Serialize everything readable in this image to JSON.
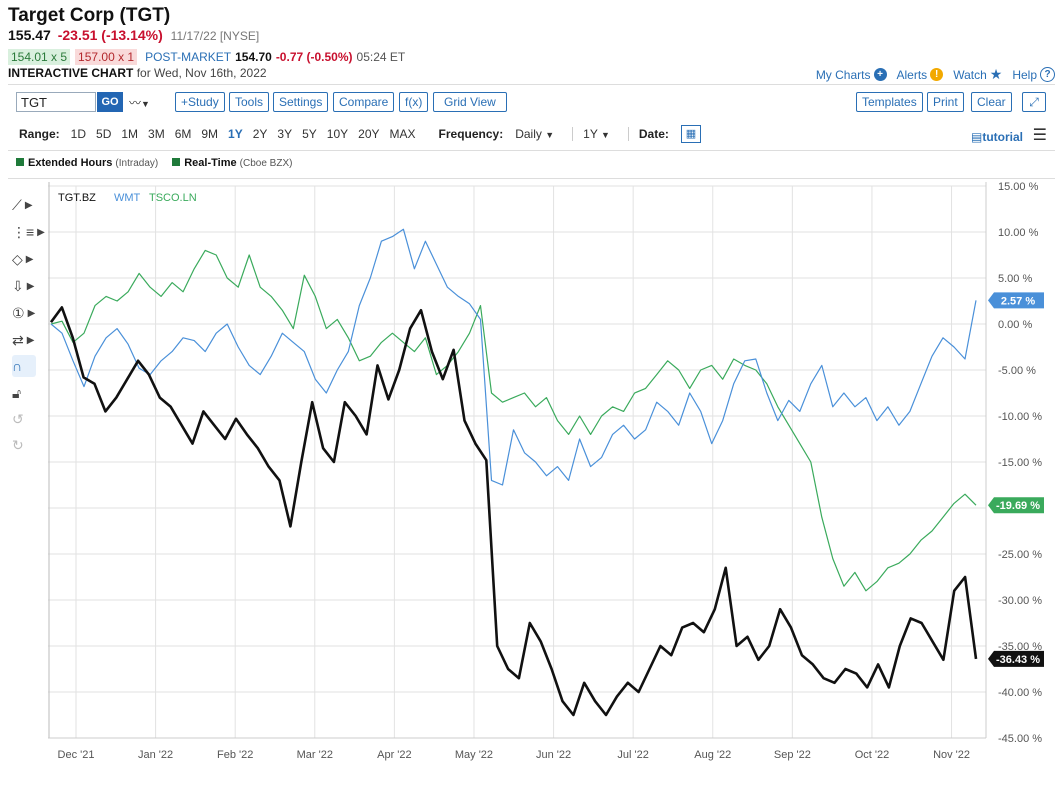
{
  "header": {
    "title": "Target Corp (TGT)",
    "last": "155.47",
    "change": "-23.51 (-13.14%)",
    "time": "11/17/22 [NYSE]",
    "bid": "154.01 x 5",
    "ask": "157.00 x 1",
    "post_label": "POST-MARKET",
    "post_price": "154.70",
    "post_change": "-0.77 (-0.50%)",
    "post_time": "05:24 ET",
    "chart_label": "INTERACTIVE CHART",
    "chart_date": "for Wed, Nov 16th, 2022"
  },
  "links": {
    "my_charts": "My Charts",
    "alerts": "Alerts",
    "watch": "Watch",
    "help": "Help"
  },
  "toolbar": {
    "symbol": "TGT",
    "go": "GO",
    "study": "+Study",
    "tools": "Tools",
    "settings": "Settings",
    "compare": "Compare",
    "fx": "f(x)",
    "grid_view": "Grid View",
    "templates": "Templates",
    "print": "Print",
    "clear": "Clear"
  },
  "range": {
    "label": "Range:",
    "options": [
      "1D",
      "5D",
      "1M",
      "3M",
      "6M",
      "9M",
      "1Y",
      "2Y",
      "3Y",
      "5Y",
      "10Y",
      "20Y",
      "MAX"
    ],
    "active": "1Y",
    "frequency_label": "Frequency:",
    "frequency": "Daily",
    "period": "1Y",
    "date_label": "Date:",
    "tutorial": "tutorial"
  },
  "legend": {
    "extended": "Extended Hours",
    "extended_sub": "(Intraday)",
    "realtime": "Real-Time",
    "realtime_sub": "(Cboe BZX)"
  },
  "colors": {
    "tgt": "#111111",
    "wmt": "#4a90d9",
    "tsco": "#3aaa5c",
    "accent": "#2a6fb5"
  },
  "chart_data": {
    "type": "line",
    "x_labels": [
      "Dec '21",
      "Jan '22",
      "Feb '22",
      "Mar '22",
      "Apr '22",
      "May '22",
      "Jun '22",
      "Jul '22",
      "Aug '22",
      "Sep '22",
      "Oct '22",
      "Nov '22"
    ],
    "y_ticks": [
      "15.00 %",
      "10.00 %",
      "5.00 %",
      "0.00 %",
      "-5.00 %",
      "-10.00 %",
      "-15.00 %",
      "-20.00 %",
      "-25.00 %",
      "-30.00 %",
      "-35.00 %",
      "-40.00 %",
      "-45.00 %"
    ],
    "ylim": [
      -45,
      15
    ],
    "series": [
      {
        "name": "TGT.BZ",
        "badge": "-36.43 %",
        "values": [
          0.2,
          1.8,
          -1.5,
          -5.8,
          -6.5,
          -9.5,
          -8,
          -6,
          -4,
          -5.5,
          -8,
          -9,
          -11,
          -13,
          -9.5,
          -11,
          -12.5,
          -10.3,
          -12,
          -13.5,
          -15.5,
          -17,
          -22,
          -15,
          -8.5,
          -13.5,
          -15,
          -8.5,
          -10,
          -12,
          -4.5,
          -8.2,
          -5,
          -0.5,
          1.5,
          -3,
          -6,
          -2.8,
          -10.5,
          -13,
          -14.8,
          -35,
          -37.5,
          -38.5,
          -32.5,
          -34.5,
          -37.5,
          -41,
          -42.5,
          -39,
          -41,
          -42.5,
          -40.5,
          -39,
          -40,
          -37.5,
          -35,
          -36,
          -33,
          -32.5,
          -33.5,
          -31,
          -26.5,
          -35,
          -34,
          -36.5,
          -35,
          -31,
          -33,
          -36,
          -37,
          -38.5,
          -39,
          -37.5,
          -38,
          -39.5,
          -37,
          -39.5,
          -35,
          -32,
          -32.5,
          -34.5,
          -36.5,
          -29,
          -27.5,
          -36.4
        ]
      },
      {
        "name": "WMT",
        "badge": "2.57 %",
        "values": [
          0,
          -1,
          -4,
          -6.8,
          -3.5,
          -1.5,
          -0.5,
          -2.2,
          -4.8,
          -5.5,
          -4,
          -3,
          -1.5,
          -1.8,
          -3,
          -1,
          0,
          -2.5,
          -4.5,
          -5.5,
          -3.5,
          -1,
          -2,
          -3,
          -6,
          -7.5,
          -5,
          -3,
          2,
          5,
          9,
          9.5,
          10.3,
          6,
          9,
          6.5,
          4,
          3,
          2.2,
          0.5,
          -17,
          -17.5,
          -11.5,
          -14,
          -15,
          -16.5,
          -15.5,
          -17,
          -12.5,
          -15.5,
          -14.5,
          -12,
          -11,
          -12.5,
          -11.5,
          -8.5,
          -9.5,
          -11,
          -7.5,
          -9.5,
          -13,
          -10.5,
          -6.5,
          -4,
          -3.8,
          -7.5,
          -10.5,
          -8.3,
          -9.5,
          -6.5,
          -4.5,
          -9,
          -7.5,
          -9,
          -8,
          -10.5,
          -9,
          -11,
          -9.5,
          -6.5,
          -3.5,
          -1.5,
          -2.5,
          -3.8,
          2.57
        ]
      },
      {
        "name": "TSCO.LN",
        "badge": "-19.69 %",
        "values": [
          0,
          0.3,
          -2,
          -1,
          2,
          3,
          2.5,
          3.5,
          5.5,
          4,
          3,
          4.5,
          3.5,
          6,
          8,
          7.5,
          5,
          4,
          7.5,
          4,
          3,
          1.5,
          -0.5,
          5.3,
          3,
          -0.5,
          0.5,
          -1.5,
          -4,
          -3.5,
          -2,
          -1,
          -2,
          -3,
          -1.5,
          -5.5,
          -4.5,
          -3,
          -1,
          2,
          -7.5,
          -8.5,
          -8,
          -7.5,
          -9,
          -8,
          -10.5,
          -12,
          -10,
          -12,
          -10,
          -9,
          -9.5,
          -7.5,
          -7,
          -5.5,
          -4,
          -5,
          -7,
          -5,
          -4.5,
          -6,
          -3.8,
          -4.5,
          -5,
          -6.5,
          -9,
          -11,
          -13,
          -15,
          -21,
          -25.5,
          -28.5,
          -27,
          -29,
          -28,
          -26.5,
          -26,
          -25,
          -23.5,
          -22.5,
          -21,
          -19.5,
          -18.5,
          -19.7
        ]
      }
    ]
  }
}
